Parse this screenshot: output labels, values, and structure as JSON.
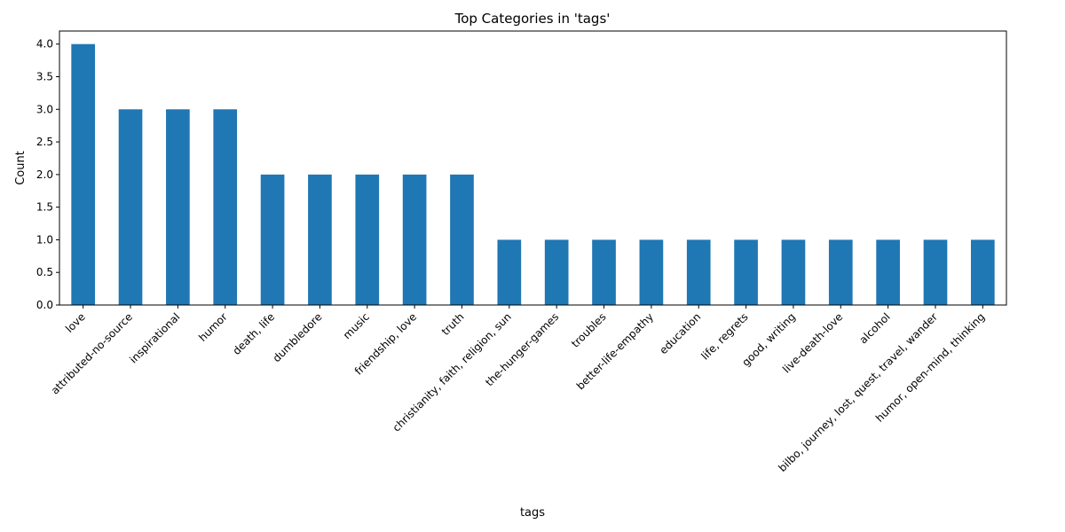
{
  "chart_data": {
    "type": "bar",
    "title": "Top Categories in 'tags'",
    "xlabel": "tags",
    "ylabel": "Count",
    "ylim": [
      0,
      4.2
    ],
    "yticks": [
      "0.0",
      "0.5",
      "1.0",
      "1.5",
      "2.0",
      "2.5",
      "3.0",
      "3.5",
      "4.0"
    ],
    "ytick_values": [
      0,
      0.5,
      1,
      1.5,
      2,
      2.5,
      3,
      3.5,
      4
    ],
    "bar_color": "#1f77b4",
    "grid": false,
    "legend": "none",
    "categories": [
      "love",
      "attributed-no-source",
      "inspirational",
      "humor",
      "death, life",
      "dumbledore",
      "music",
      "friendship, love",
      "truth",
      "christianity, faith, religion, sun",
      "the-hunger-games",
      "troubles",
      "better-life-empathy",
      "education",
      "life, regrets",
      "good, writing",
      "live-death-love",
      "alcohol",
      "bilbo, journey, lost, quest, travel, wander",
      "humor, open-mind, thinking"
    ],
    "values": [
      4,
      3,
      3,
      3,
      2,
      2,
      2,
      2,
      2,
      1,
      1,
      1,
      1,
      1,
      1,
      1,
      1,
      1,
      1,
      1
    ]
  }
}
